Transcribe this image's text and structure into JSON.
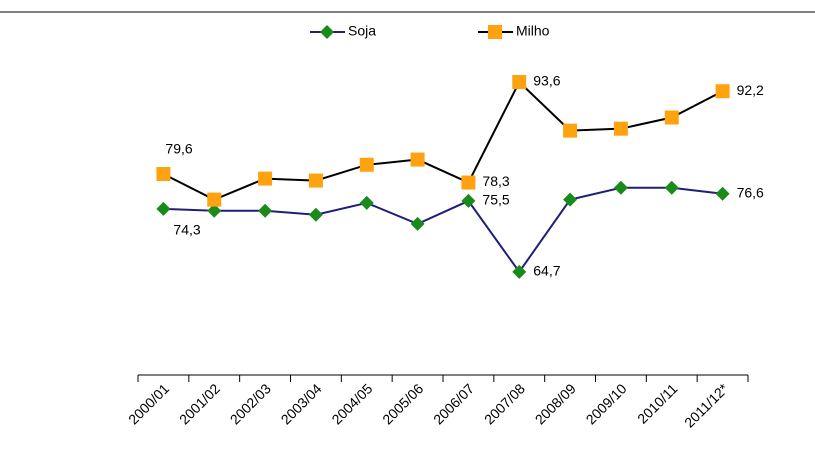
{
  "chart_data": {
    "type": "line",
    "categories": [
      "2000/01",
      "2001/02",
      "2002/03",
      "2003/04",
      "2004/05",
      "2005/06",
      "2006/07",
      "2007/08",
      "2008/09",
      "2009/10",
      "2010/11",
      "2011/12*"
    ],
    "series": [
      {
        "name": "Soja",
        "color": "#1f1f7a",
        "marker_color": "#1a8a1a",
        "marker": "diamond",
        "values": [
          74.3,
          74.0,
          74.0,
          73.4,
          75.2,
          72.0,
          75.5,
          64.7,
          75.7,
          77.5,
          77.5,
          76.6
        ],
        "value_labels": [
          "74,3",
          null,
          null,
          null,
          null,
          null,
          "75,5",
          "64,7",
          null,
          null,
          null,
          "76,6"
        ]
      },
      {
        "name": "Milho",
        "color": "#000000",
        "marker_color": "#ffa20f",
        "marker": "square",
        "values": [
          79.6,
          75.7,
          78.9,
          78.6,
          81.0,
          81.8,
          78.3,
          93.6,
          86.2,
          86.5,
          88.2,
          92.2
        ],
        "value_labels": [
          "79,6",
          null,
          null,
          null,
          null,
          null,
          "78,3",
          "93,6",
          null,
          null,
          null,
          "92,2"
        ]
      }
    ],
    "ylim": [
      49,
      100
    ],
    "legend": "top"
  }
}
